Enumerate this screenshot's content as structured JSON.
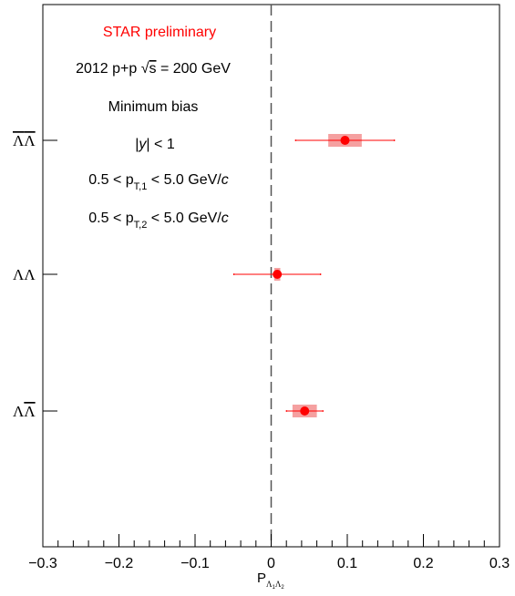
{
  "chart_data": {
    "type": "scatter",
    "xlabel": "P",
    "xlabel_sub_1": "Λ",
    "xlabel_sub_1_idx": "1",
    "xlabel_sub_2": "Λ",
    "xlabel_sub_2_idx": "2",
    "xlim": [
      -0.3,
      0.3
    ],
    "xticks": [
      "−0.3",
      "−0.2",
      "−0.1",
      "0",
      "0.1",
      "0.2",
      "0.3"
    ],
    "xtick_values": [
      -0.3,
      -0.2,
      -0.1,
      0,
      0.1,
      0.2,
      0.3
    ],
    "reference_line": 0,
    "grid": false,
    "colors": {
      "marker": "#ff0000",
      "sys_band": "#f5a0a0",
      "text_highlight": "#ff0000"
    },
    "categories": [
      {
        "label": "ΛΛ",
        "overline": "both"
      },
      {
        "label": "ΛΛ",
        "overline": "none"
      },
      {
        "label": "ΛΛ",
        "overline": "second"
      }
    ],
    "points": [
      {
        "category": 0,
        "x": 0.097,
        "stat_err_low": 0.065,
        "stat_err_high": 0.065,
        "sys_err": 0.022
      },
      {
        "category": 1,
        "x": 0.008,
        "stat_err_low": 0.057,
        "stat_err_high": 0.057,
        "sys_err": 0.004
      },
      {
        "category": 2,
        "x": 0.044,
        "stat_err_low": 0.024,
        "stat_err_high": 0.024,
        "sys_err": 0.016
      }
    ],
    "annotations": {
      "star": "STAR preliminary",
      "system_pre": "2012 p+p ",
      "system_root": "√",
      "system_s": "s",
      "system_post": " = 200 GeV",
      "bias": "Minimum bias",
      "rap_pre": "|",
      "rap_y": "y",
      "rap_post": "| < 1",
      "pt1_pre": "0.5 < p",
      "pt1_sub": "T,1",
      "pt1_post": " < 5.0 GeV/",
      "pt1_c": "c",
      "pt2_pre": "0.5 < p",
      "pt2_sub": "T,2",
      "pt2_post": " < 5.0 GeV/",
      "pt2_c": "c"
    }
  }
}
